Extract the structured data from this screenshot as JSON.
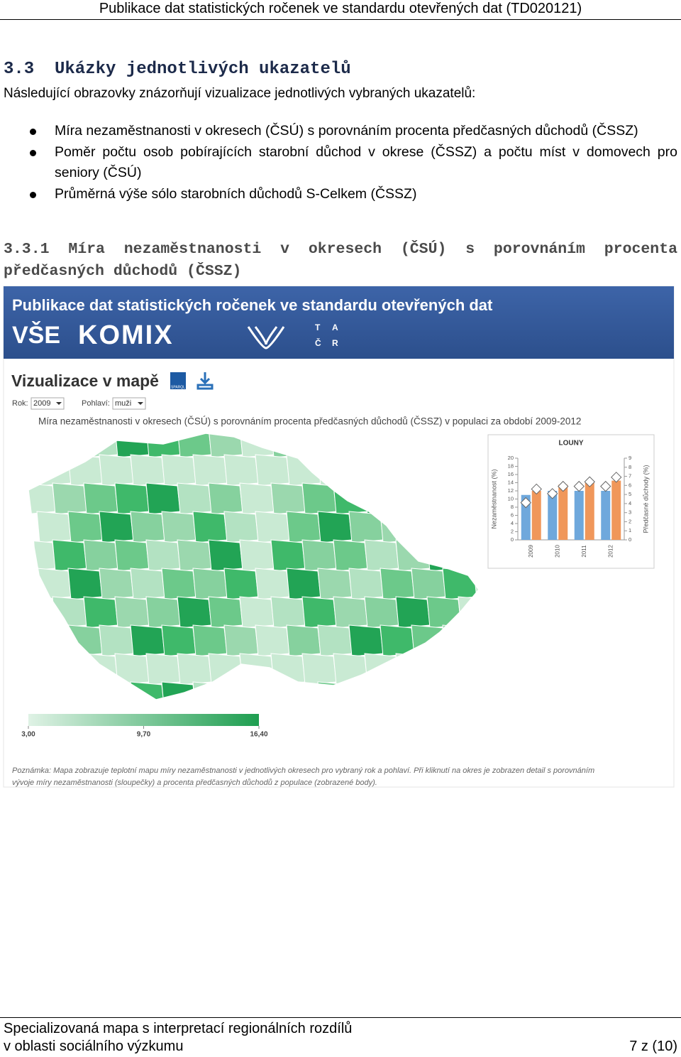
{
  "header": "Publikace dat statistických ročenek ve standardu otevřených dat (TD020121)",
  "section": {
    "number": "3.3",
    "title": "Ukázky jednotlivých ukazatelů"
  },
  "intro": "Následující obrazovky znázorňují vizualizace jednotlivých vybraných ukazatelů:",
  "bullets": [
    "Míra nezaměstnanosti v okresech (ČSÚ) s porovnáním procenta předčasných důchodů (ČSSZ)",
    "Poměr počtu osob pobírajících starobní důchod v okrese (ČSSZ) a počtu míst v domovech pro seniory (ČSÚ)",
    "Průměrná výše sólo starobních důchodů S-Celkem (ČSSZ)"
  ],
  "subsection": {
    "number": "3.3.1",
    "title": "Míra nezaměstnanosti v okresech (ČSÚ) s porovnáním procenta předčasných důchodů (ČSSZ)"
  },
  "screenshot": {
    "banner_title": "Publikace dat statistických ročenek ve standardu otevřených dat",
    "logos": [
      "VŠE",
      "KOMIX",
      "T",
      "A",
      "Č",
      "R"
    ],
    "heading": "Vizualizace v mapě",
    "sparql": "SPARQL",
    "filters": [
      {
        "label": "Rok:",
        "value": "2009"
      },
      {
        "label": "Pohlaví:",
        "value": "muži"
      }
    ],
    "map_title": "Míra nezaměstnanosti v okresech (ČSÚ) s porovnáním procenta předčasných důchodů (ČSSZ) v populaci za období 2009-2012",
    "scale": {
      "xlim": [
        3,
        16.4
      ],
      "colors": [
        "#dff2e5",
        "#1e9e50"
      ],
      "xticks": [
        {
          "value": 3,
          "label": "3,00"
        },
        {
          "value": 9.7,
          "label": "9,70"
        },
        {
          "value": 16.4,
          "label": "16,40"
        }
      ]
    },
    "note": [
      "Poznámka: Mapa zobrazuje teplotní mapu míry nezaměstnanosti v jednotlivých okresech pro vybraný rok a pohlaví. Při kliknutí na okres je zobrazen detail s porovnáním",
      "vývoje míry nezaměstnanosti (sloupečky) a procenta předčasných důchodů z populace (zobrazené body)."
    ]
  },
  "chart_data": {
    "type": "bar",
    "title": "LOUNY",
    "categories": [
      "2009",
      "2010",
      "2011",
      "2012"
    ],
    "ylabel": "Nezaměstnanost (%)",
    "y2label": "Předčasné důchody (%)",
    "ylim": [
      0,
      20
    ],
    "yticks": [
      0,
      2,
      4,
      6,
      8,
      10,
      12,
      14,
      16,
      18,
      20
    ],
    "y2lim": [
      0,
      9
    ],
    "y2ticks": [
      0,
      1,
      2,
      3,
      4,
      5,
      6,
      7,
      8,
      9
    ],
    "series": [
      {
        "color": "#6fa8dc",
        "values": [
          11,
          12,
          12,
          12
        ]
      },
      {
        "color": "#f0975a",
        "values": [
          12,
          13.5,
          14,
          14.5
        ]
      },
      {
        "color": "#ffffff",
        "marker": "diamond",
        "axis": "y2",
        "values": [
          4.1,
          5.1,
          5.9,
          5.9
        ]
      },
      {
        "color": "#ffffff",
        "marker": "diamond",
        "axis": "y2",
        "values": [
          5.6,
          5.9,
          6.4,
          6.9
        ]
      }
    ]
  },
  "footer": {
    "lines": [
      "Specializovaná mapa s interpretací regionálních rozdílů",
      "v oblasti sociálního výzkumu"
    ],
    "page": "7 z (10)"
  }
}
